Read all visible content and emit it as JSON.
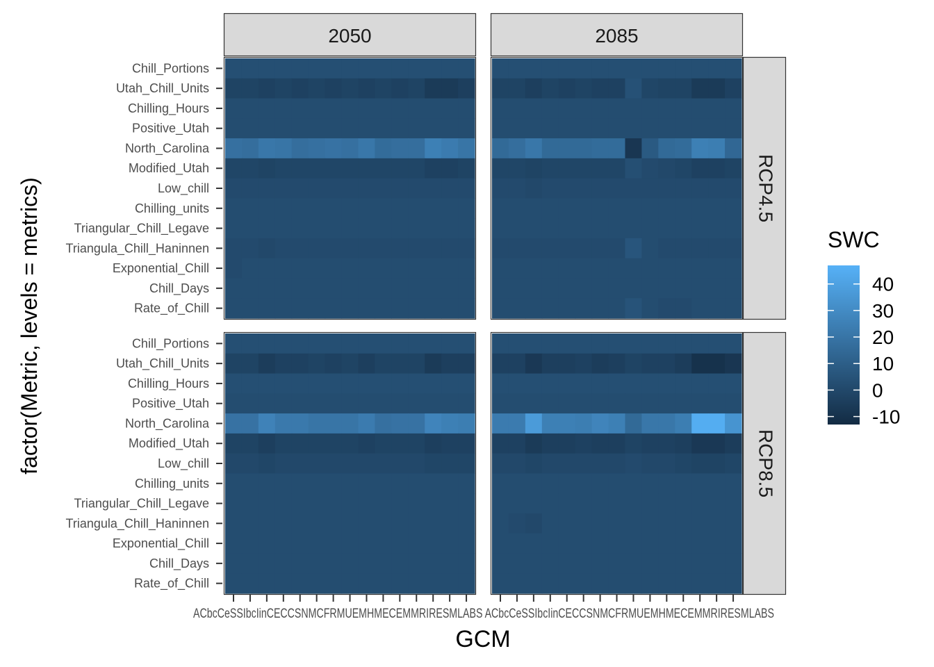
{
  "chart_data": {
    "type": "heatmap",
    "xlabel": "GCM",
    "ylabel": "factor(Metric, levels = metrics)",
    "facet_cols": [
      "2050",
      "2085"
    ],
    "facet_rows": [
      "RCP4.5",
      "RCP8.5"
    ],
    "x_tick_text": "ACbcCeSSIbcIinCECCSNMCFRMUEMHMECEMMRIRESMLABS ACbcCeSSIbcIinCECCSNMCFRMUEMHMECEMMRIRESMLABS",
    "metrics": [
      "Chill_Portions",
      "Utah_Chill_Units",
      "Chilling_Hours",
      "Positive_Utah",
      "North_Carolina",
      "Modified_Utah",
      "Low_chill",
      "Chilling_units",
      "Triangular_Chill_Legave",
      "Triangula_Chill_Haninnen",
      "Exponential_Chill",
      "Chill_Days",
      "Rate_of_Chill"
    ],
    "legend": {
      "title": "SWC",
      "ticks": [
        40,
        30,
        20,
        10,
        0,
        -10
      ],
      "range": [
        -13,
        47
      ],
      "low_color": "#132B43",
      "high_color": "#56B1F7",
      "position": "right"
    },
    "n_gcms": 15,
    "panels": [
      {
        "col": "2050",
        "row": "RCP4.5",
        "values": [
          [
            3,
            3,
            3,
            3,
            3,
            3,
            3,
            3,
            3,
            3,
            3,
            3,
            3,
            3,
            3
          ],
          [
            -2,
            -2,
            -3,
            -2,
            -3,
            -2,
            -3,
            -2,
            -3,
            -2,
            -3,
            -2,
            -6,
            -6,
            -4
          ],
          [
            2,
            2,
            2,
            2,
            2,
            2,
            2,
            2,
            2,
            2,
            2,
            2,
            2,
            2,
            2
          ],
          [
            2,
            2,
            2,
            2,
            2,
            2,
            2,
            2,
            2,
            2,
            2,
            2,
            2,
            2,
            2
          ],
          [
            18,
            17,
            21,
            20,
            17,
            18,
            19,
            18,
            21,
            16,
            17,
            17,
            25,
            23,
            20
          ],
          [
            -1,
            -1,
            -2,
            -1,
            -1,
            -1,
            -1,
            -1,
            -1,
            -1,
            -1,
            -1,
            -3,
            -3,
            -2
          ],
          [
            1,
            1,
            1,
            1,
            1,
            1,
            1,
            1,
            1,
            1,
            1,
            1,
            1,
            1,
            1
          ],
          [
            2,
            2,
            2,
            2,
            2,
            2,
            2,
            2,
            2,
            2,
            2,
            2,
            2,
            2,
            2
          ],
          [
            2,
            2,
            2,
            2,
            2,
            2,
            2,
            2,
            2,
            2,
            2,
            2,
            2,
            2,
            2
          ],
          [
            1,
            1,
            0,
            1,
            1,
            1,
            1,
            1,
            1,
            1,
            1,
            1,
            1,
            1,
            1
          ],
          [
            1,
            2,
            2,
            2,
            2,
            2,
            2,
            2,
            2,
            2,
            2,
            2,
            2,
            2,
            2
          ],
          [
            2,
            2,
            2,
            2,
            2,
            2,
            2,
            2,
            2,
            2,
            2,
            2,
            2,
            2,
            2
          ],
          [
            2,
            2,
            2,
            2,
            2,
            2,
            2,
            2,
            2,
            2,
            2,
            2,
            2,
            2,
            2
          ]
        ]
      },
      {
        "col": "2085",
        "row": "RCP4.5",
        "values": [
          [
            3,
            3,
            3,
            3,
            3,
            3,
            3,
            3,
            3,
            3,
            3,
            3,
            3,
            3,
            3
          ],
          [
            -2,
            -2,
            -4,
            -2,
            -3,
            -2,
            -3,
            -3,
            4,
            -1,
            -2,
            -2,
            -6,
            -6,
            -3
          ],
          [
            2,
            2,
            2,
            2,
            2,
            2,
            2,
            2,
            2,
            2,
            2,
            2,
            2,
            2,
            2
          ],
          [
            2,
            2,
            2,
            2,
            2,
            2,
            2,
            2,
            2,
            2,
            2,
            2,
            2,
            2,
            2
          ],
          [
            15,
            17,
            21,
            15,
            15,
            15,
            16,
            16,
            -8,
            8,
            15,
            16,
            25,
            24,
            14
          ],
          [
            -1,
            -1,
            -2,
            -1,
            -1,
            -1,
            -1,
            -1,
            3,
            1,
            0,
            -1,
            -3,
            -3,
            -2
          ],
          [
            1,
            1,
            0,
            1,
            1,
            1,
            1,
            1,
            1,
            1,
            1,
            1,
            1,
            1,
            1
          ],
          [
            2,
            2,
            2,
            2,
            2,
            2,
            2,
            2,
            2,
            2,
            2,
            2,
            2,
            2,
            2
          ],
          [
            2,
            2,
            2,
            2,
            2,
            2,
            2,
            2,
            2,
            2,
            2,
            2,
            2,
            2,
            2
          ],
          [
            1,
            1,
            1,
            1,
            1,
            1,
            1,
            1,
            6,
            2,
            1,
            1,
            1,
            1,
            1
          ],
          [
            2,
            2,
            2,
            2,
            2,
            2,
            2,
            2,
            2,
            2,
            2,
            2,
            2,
            2,
            2
          ],
          [
            2,
            2,
            2,
            2,
            2,
            2,
            2,
            2,
            2,
            2,
            2,
            2,
            2,
            2,
            2
          ],
          [
            2,
            2,
            2,
            2,
            2,
            2,
            2,
            2,
            5,
            2,
            1,
            1,
            2,
            2,
            2
          ]
        ]
      },
      {
        "col": "2050",
        "row": "RCP8.5",
        "values": [
          [
            3,
            3,
            3,
            3,
            3,
            3,
            3,
            3,
            3,
            3,
            3,
            3,
            3,
            3,
            3
          ],
          [
            -2,
            -2,
            -5,
            -3,
            -3,
            -2,
            -3,
            -2,
            -4,
            -2,
            -2,
            -2,
            -6,
            -4,
            -4
          ],
          [
            3,
            3,
            3,
            3,
            3,
            3,
            3,
            3,
            3,
            3,
            3,
            3,
            3,
            3,
            3
          ],
          [
            2,
            2,
            2,
            2,
            2,
            2,
            2,
            2,
            2,
            2,
            2,
            2,
            2,
            2,
            2
          ],
          [
            19,
            19,
            26,
            22,
            22,
            20,
            20,
            20,
            23,
            18,
            19,
            19,
            27,
            25,
            24
          ],
          [
            -2,
            -2,
            -4,
            -2,
            -2,
            -2,
            -2,
            -2,
            -3,
            -2,
            -2,
            -2,
            -4,
            -3,
            -3
          ],
          [
            0,
            0,
            -1,
            0,
            0,
            0,
            0,
            0,
            0,
            0,
            0,
            0,
            -1,
            -1,
            -1
          ],
          [
            2,
            2,
            2,
            2,
            2,
            2,
            2,
            2,
            2,
            2,
            2,
            2,
            2,
            2,
            2
          ],
          [
            2,
            2,
            2,
            2,
            2,
            2,
            2,
            2,
            2,
            2,
            2,
            2,
            2,
            2,
            2
          ],
          [
            2,
            2,
            2,
            2,
            2,
            2,
            2,
            2,
            2,
            2,
            2,
            2,
            2,
            2,
            2
          ],
          [
            2,
            2,
            2,
            2,
            2,
            2,
            2,
            2,
            2,
            2,
            2,
            2,
            2,
            2,
            2
          ],
          [
            2,
            2,
            2,
            2,
            2,
            2,
            2,
            2,
            2,
            2,
            2,
            2,
            2,
            2,
            2
          ],
          [
            2,
            2,
            2,
            2,
            2,
            2,
            2,
            2,
            2,
            2,
            2,
            2,
            2,
            2,
            2
          ]
        ]
      },
      {
        "col": "2085",
        "row": "RCP8.5",
        "values": [
          [
            3,
            3,
            3,
            3,
            3,
            3,
            3,
            3,
            3,
            3,
            3,
            3,
            3,
            3,
            3
          ],
          [
            -3,
            -3,
            -7,
            -4,
            -4,
            -3,
            -5,
            -4,
            -2,
            -3,
            -3,
            -5,
            -10,
            -10,
            -8
          ],
          [
            3,
            3,
            3,
            3,
            3,
            3,
            3,
            3,
            3,
            3,
            3,
            3,
            3,
            3,
            3
          ],
          [
            2,
            2,
            2,
            2,
            2,
            2,
            2,
            2,
            2,
            2,
            2,
            2,
            2,
            2,
            2
          ],
          [
            23,
            23,
            37,
            25,
            25,
            24,
            27,
            25,
            15,
            21,
            21,
            24,
            45,
            45,
            34
          ],
          [
            -3,
            -3,
            -6,
            -4,
            -4,
            -3,
            -4,
            -4,
            -2,
            -3,
            -3,
            -4,
            -7,
            -7,
            -5
          ],
          [
            0,
            0,
            -1,
            0,
            0,
            0,
            0,
            0,
            1,
            0,
            0,
            -1,
            -2,
            -2,
            -1
          ],
          [
            2,
            2,
            2,
            2,
            2,
            2,
            2,
            2,
            2,
            2,
            2,
            2,
            2,
            2,
            2
          ],
          [
            2,
            2,
            2,
            2,
            2,
            2,
            2,
            2,
            2,
            2,
            2,
            2,
            2,
            2,
            2
          ],
          [
            2,
            1,
            0,
            2,
            2,
            2,
            2,
            2,
            2,
            2,
            2,
            2,
            2,
            2,
            2
          ],
          [
            2,
            2,
            2,
            2,
            2,
            2,
            2,
            2,
            2,
            2,
            2,
            2,
            2,
            2,
            2
          ],
          [
            2,
            2,
            2,
            2,
            2,
            2,
            2,
            2,
            2,
            2,
            2,
            2,
            2,
            2,
            2
          ],
          [
            2,
            2,
            2,
            2,
            2,
            2,
            2,
            2,
            2,
            2,
            2,
            2,
            2,
            2,
            2
          ]
        ]
      }
    ]
  }
}
